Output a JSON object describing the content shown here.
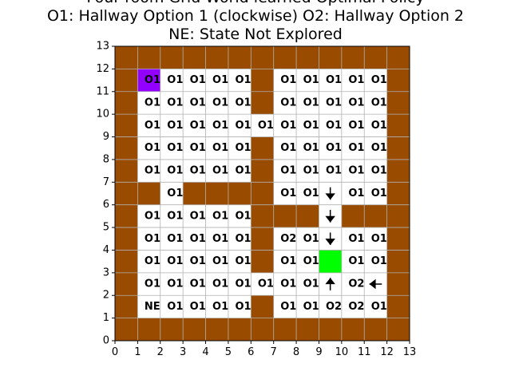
{
  "chart_data": {
    "type": "heatmap",
    "title_lines": [
      "Four room Grid World learned Optimal Policy",
      "O1: Hallway Option 1 (clockwise) O2: Hallway Option 2",
      "NE: State Not Explored"
    ],
    "xlim": [
      0,
      13
    ],
    "ylim": [
      0,
      13
    ],
    "xticks": [
      "0",
      "1",
      "2",
      "3",
      "4",
      "5",
      "6",
      "7",
      "8",
      "9",
      "10",
      "11",
      "12",
      "13"
    ],
    "yticks": [
      "0",
      "1",
      "2",
      "3",
      "4",
      "5",
      "6",
      "7",
      "8",
      "9",
      "10",
      "11",
      "12",
      "13"
    ],
    "grid": true,
    "colors": {
      "wall": "#994c00",
      "empty": "#ffffff",
      "start": "#9400ff",
      "goal": "#00ff00",
      "grid": "#b0b0b0"
    },
    "grid_rows_top_to_bottom": [
      "WWWWWWWWWWWWW",
      "W.....W.....W",
      "W.....W.....W",
      "W...........W",
      "W.....W.....W",
      "W.....W.....W",
      "WW.WWWW.....W",
      "W.....WWW.WWW",
      "W.....W.....W",
      "W.....W.....W",
      "W...........W",
      "W.....W.....W",
      "WWWWWWWWWWWWW"
    ],
    "start_cell": [
      1,
      11
    ],
    "goal_cell": [
      9,
      3
    ],
    "cell_labels": [
      {
        "x": 1,
        "y": 11,
        "text": "O1"
      },
      {
        "x": 2,
        "y": 11,
        "text": "O1"
      },
      {
        "x": 3,
        "y": 11,
        "text": "O1"
      },
      {
        "x": 4,
        "y": 11,
        "text": "O1"
      },
      {
        "x": 5,
        "y": 11,
        "text": "O1"
      },
      {
        "x": 7,
        "y": 11,
        "text": "O1"
      },
      {
        "x": 8,
        "y": 11,
        "text": "O1"
      },
      {
        "x": 9,
        "y": 11,
        "text": "O1"
      },
      {
        "x": 10,
        "y": 11,
        "text": "O1"
      },
      {
        "x": 11,
        "y": 11,
        "text": "O1"
      },
      {
        "x": 1,
        "y": 10,
        "text": "O1"
      },
      {
        "x": 2,
        "y": 10,
        "text": "O1"
      },
      {
        "x": 3,
        "y": 10,
        "text": "O1"
      },
      {
        "x": 4,
        "y": 10,
        "text": "O1"
      },
      {
        "x": 5,
        "y": 10,
        "text": "O1"
      },
      {
        "x": 7,
        "y": 10,
        "text": "O1"
      },
      {
        "x": 8,
        "y": 10,
        "text": "O1"
      },
      {
        "x": 9,
        "y": 10,
        "text": "O1"
      },
      {
        "x": 10,
        "y": 10,
        "text": "O1"
      },
      {
        "x": 11,
        "y": 10,
        "text": "O1"
      },
      {
        "x": 1,
        "y": 9,
        "text": "O1"
      },
      {
        "x": 2,
        "y": 9,
        "text": "O1"
      },
      {
        "x": 3,
        "y": 9,
        "text": "O1"
      },
      {
        "x": 4,
        "y": 9,
        "text": "O1"
      },
      {
        "x": 5,
        "y": 9,
        "text": "O1"
      },
      {
        "x": 6,
        "y": 9,
        "text": "O1"
      },
      {
        "x": 7,
        "y": 9,
        "text": "O1"
      },
      {
        "x": 8,
        "y": 9,
        "text": "O1"
      },
      {
        "x": 9,
        "y": 9,
        "text": "O1"
      },
      {
        "x": 10,
        "y": 9,
        "text": "O1"
      },
      {
        "x": 11,
        "y": 9,
        "text": "O1"
      },
      {
        "x": 1,
        "y": 8,
        "text": "O1"
      },
      {
        "x": 2,
        "y": 8,
        "text": "O1"
      },
      {
        "x": 3,
        "y": 8,
        "text": "O1"
      },
      {
        "x": 4,
        "y": 8,
        "text": "O1"
      },
      {
        "x": 5,
        "y": 8,
        "text": "O1"
      },
      {
        "x": 7,
        "y": 8,
        "text": "O1"
      },
      {
        "x": 8,
        "y": 8,
        "text": "O1"
      },
      {
        "x": 9,
        "y": 8,
        "text": "O1"
      },
      {
        "x": 10,
        "y": 8,
        "text": "O1"
      },
      {
        "x": 11,
        "y": 8,
        "text": "O1"
      },
      {
        "x": 1,
        "y": 7,
        "text": "O1"
      },
      {
        "x": 2,
        "y": 7,
        "text": "O1"
      },
      {
        "x": 3,
        "y": 7,
        "text": "O1"
      },
      {
        "x": 4,
        "y": 7,
        "text": "O1"
      },
      {
        "x": 5,
        "y": 7,
        "text": "O1"
      },
      {
        "x": 7,
        "y": 7,
        "text": "O1"
      },
      {
        "x": 8,
        "y": 7,
        "text": "O1"
      },
      {
        "x": 9,
        "y": 7,
        "text": "O1"
      },
      {
        "x": 10,
        "y": 7,
        "text": "O1"
      },
      {
        "x": 11,
        "y": 7,
        "text": "O1"
      },
      {
        "x": 2,
        "y": 6,
        "text": "O1"
      },
      {
        "x": 7,
        "y": 6,
        "text": "O1"
      },
      {
        "x": 8,
        "y": 6,
        "text": "O1"
      },
      {
        "x": 10,
        "y": 6,
        "text": "O1"
      },
      {
        "x": 11,
        "y": 6,
        "text": "O1"
      },
      {
        "x": 1,
        "y": 5,
        "text": "O1"
      },
      {
        "x": 2,
        "y": 5,
        "text": "O1"
      },
      {
        "x": 3,
        "y": 5,
        "text": "O1"
      },
      {
        "x": 4,
        "y": 5,
        "text": "O1"
      },
      {
        "x": 5,
        "y": 5,
        "text": "O1"
      },
      {
        "x": 1,
        "y": 4,
        "text": "O1"
      },
      {
        "x": 2,
        "y": 4,
        "text": "O1"
      },
      {
        "x": 3,
        "y": 4,
        "text": "O1"
      },
      {
        "x": 4,
        "y": 4,
        "text": "O1"
      },
      {
        "x": 5,
        "y": 4,
        "text": "O1"
      },
      {
        "x": 7,
        "y": 4,
        "text": "O2"
      },
      {
        "x": 8,
        "y": 4,
        "text": "O1"
      },
      {
        "x": 10,
        "y": 4,
        "text": "O1"
      },
      {
        "x": 11,
        "y": 4,
        "text": "O1"
      },
      {
        "x": 1,
        "y": 3,
        "text": "O1"
      },
      {
        "x": 2,
        "y": 3,
        "text": "O1"
      },
      {
        "x": 3,
        "y": 3,
        "text": "O1"
      },
      {
        "x": 4,
        "y": 3,
        "text": "O1"
      },
      {
        "x": 5,
        "y": 3,
        "text": "O1"
      },
      {
        "x": 7,
        "y": 3,
        "text": "O1"
      },
      {
        "x": 8,
        "y": 3,
        "text": "O1"
      },
      {
        "x": 10,
        "y": 3,
        "text": "O1"
      },
      {
        "x": 11,
        "y": 3,
        "text": "O1"
      },
      {
        "x": 1,
        "y": 2,
        "text": "O1"
      },
      {
        "x": 2,
        "y": 2,
        "text": "O1"
      },
      {
        "x": 3,
        "y": 2,
        "text": "O1"
      },
      {
        "x": 4,
        "y": 2,
        "text": "O1"
      },
      {
        "x": 5,
        "y": 2,
        "text": "O1"
      },
      {
        "x": 6,
        "y": 2,
        "text": "O1"
      },
      {
        "x": 7,
        "y": 2,
        "text": "O1"
      },
      {
        "x": 8,
        "y": 2,
        "text": "O1"
      },
      {
        "x": 10,
        "y": 2,
        "text": "O2"
      },
      {
        "x": 1,
        "y": 1,
        "text": "NE"
      },
      {
        "x": 2,
        "y": 1,
        "text": "O1"
      },
      {
        "x": 3,
        "y": 1,
        "text": "O1"
      },
      {
        "x": 4,
        "y": 1,
        "text": "O1"
      },
      {
        "x": 5,
        "y": 1,
        "text": "O1"
      },
      {
        "x": 7,
        "y": 1,
        "text": "O1"
      },
      {
        "x": 8,
        "y": 1,
        "text": "O1"
      },
      {
        "x": 9,
        "y": 1,
        "text": "O2"
      },
      {
        "x": 10,
        "y": 1,
        "text": "O2"
      },
      {
        "x": 11,
        "y": 1,
        "text": "O1"
      }
    ],
    "arrows": [
      {
        "x": 9,
        "y": 6,
        "dir": "down"
      },
      {
        "x": 9,
        "y": 5,
        "dir": "down"
      },
      {
        "x": 9,
        "y": 4,
        "dir": "down"
      },
      {
        "x": 9,
        "y": 2,
        "dir": "up"
      },
      {
        "x": 11,
        "y": 2,
        "dir": "left"
      }
    ]
  }
}
